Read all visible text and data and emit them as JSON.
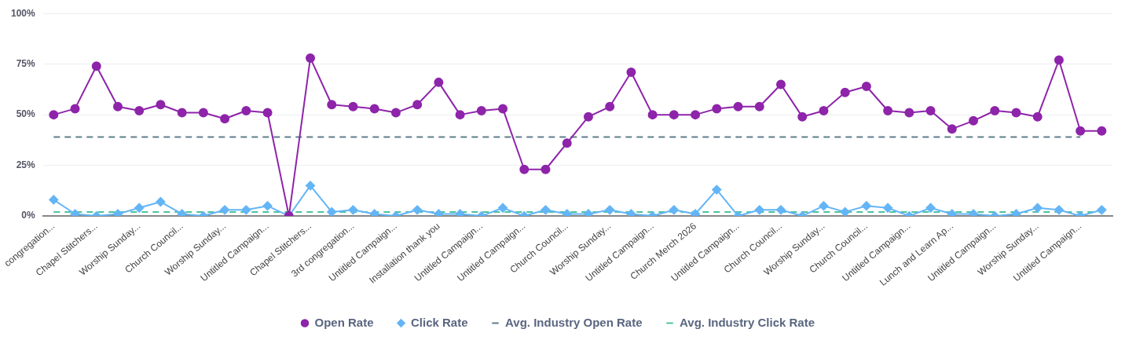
{
  "chart_data": {
    "type": "line",
    "categories": [
      "congregation...",
      null,
      "Chapel Stitchers...",
      null,
      "Worship Sunday...",
      null,
      "Church Council...",
      null,
      "Worship Sunday...",
      null,
      "Untitled Campaign...",
      null,
      "Chapel Stitchers...",
      null,
      "3rd congregation...",
      null,
      "Untitled Campaign...",
      null,
      "Installation thank you",
      null,
      "Untitled Campaign...",
      null,
      "Untitled Campaign...",
      null,
      "Church Council...",
      null,
      "Worship Sunday...",
      null,
      "Untitled Campaign...",
      null,
      "Church Merch 2026",
      null,
      "Untitled Campaign...",
      null,
      "Church Council...",
      null,
      "Worship Sunday...",
      null,
      "Church Council...",
      null,
      "Untitled Campaign...",
      null,
      "Lunch and Learn Ap...",
      null,
      "Untitled Campaign...",
      null,
      "Worship Sunday...",
      null,
      "Untitled Campaign...",
      null
    ],
    "series": [
      {
        "name": "Open Rate",
        "color": "#8e24aa",
        "marker": "circle",
        "line_style": "solid",
        "values": [
          50,
          53,
          74,
          54,
          52,
          55,
          51,
          51,
          48,
          52,
          51,
          0,
          78,
          55,
          54,
          53,
          51,
          55,
          66,
          50,
          52,
          53,
          23,
          23,
          36,
          49,
          54,
          71,
          50,
          50,
          50,
          53,
          54,
          54,
          65,
          49,
          52,
          61,
          64,
          52,
          51,
          52,
          43,
          47,
          52,
          51,
          49,
          77,
          42,
          42
        ]
      },
      {
        "name": "Click Rate",
        "color": "#64b5f6",
        "marker": "diamond",
        "line_style": "solid",
        "values": [
          8,
          1,
          0,
          1,
          4,
          7,
          1,
          0,
          3,
          3,
          5,
          0,
          15,
          2,
          3,
          1,
          0,
          3,
          1,
          1,
          0,
          4,
          0,
          3,
          1,
          1,
          3,
          1,
          0,
          3,
          1,
          13,
          0,
          3,
          3,
          0,
          5,
          2,
          5,
          4,
          0,
          4,
          1,
          1,
          0,
          1,
          4,
          3,
          0,
          3
        ]
      },
      {
        "name": "Avg. Industry Open Rate",
        "color": "#5f7d8c",
        "marker": "none",
        "line_style": "dashed",
        "values": [
          39,
          39,
          39,
          39,
          39,
          39,
          39,
          39,
          39,
          39,
          39,
          39,
          39,
          39,
          39,
          39,
          39,
          39,
          39,
          39,
          39,
          39,
          39,
          39,
          39,
          39,
          39,
          39,
          39,
          39,
          39,
          39,
          39,
          39,
          39,
          39,
          39,
          39,
          39,
          39,
          39,
          39,
          39,
          39,
          39,
          39,
          39,
          39,
          39,
          null
        ]
      },
      {
        "name": "Avg. Industry Click Rate",
        "color": "#4cc3a0",
        "marker": "none",
        "line_style": "dashed",
        "values": [
          2,
          2,
          2,
          2,
          2,
          2,
          2,
          2,
          2,
          2,
          2,
          2,
          2,
          2,
          2,
          2,
          2,
          2,
          2,
          2,
          2,
          2,
          2,
          2,
          2,
          2,
          2,
          2,
          2,
          2,
          2,
          2,
          2,
          2,
          2,
          2,
          2,
          2,
          2,
          2,
          2,
          2,
          2,
          2,
          2,
          2,
          2,
          2,
          2,
          2
        ]
      }
    ],
    "ylim": [
      0,
      100
    ],
    "yticks": [
      {
        "value": 0,
        "label": "0%"
      },
      {
        "value": 25,
        "label": "25%"
      },
      {
        "value": 50,
        "label": "50%"
      },
      {
        "value": 75,
        "label": "75%"
      },
      {
        "value": 100,
        "label": "100%"
      }
    ],
    "grid": "y",
    "legend": "bottom"
  }
}
